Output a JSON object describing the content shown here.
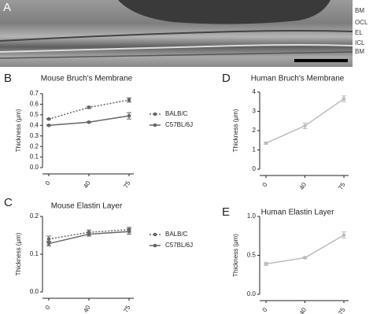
{
  "micrograph": {
    "panel_label": "A",
    "labels": [
      "BM",
      "OCL",
      "EL",
      "ICL",
      "BM"
    ]
  },
  "chart_data": [
    {
      "type": "line",
      "panel_label": "B",
      "title": "Mouse Bruch's Membrane",
      "y_label": "Thickness (μm)",
      "categories": [
        "0",
        "40",
        "75"
      ],
      "series": [
        {
          "name": "BALB/C",
          "color": "#666666",
          "dash": true,
          "values": [
            0.46,
            0.57,
            0.64
          ],
          "errors": [
            0.005,
            0.01,
            0.02
          ]
        },
        {
          "name": "C57BL/6J",
          "color": "#666666",
          "dash": false,
          "values": [
            0.4,
            0.43,
            0.49
          ],
          "errors": [
            0.005,
            0.005,
            0.03
          ]
        }
      ],
      "ylim": [
        0,
        0.7
      ],
      "yticks": [
        {
          "value": 0,
          "label": "0.0"
        },
        0.1,
        0.2,
        0.3,
        0.4,
        0.5,
        0.6,
        0.7
      ]
    },
    {
      "type": "line",
      "panel_label": "C",
      "title": "Mouse Elastin Layer",
      "y_label": "Thickness (μm)",
      "categories": [
        "0",
        "40",
        "75"
      ],
      "series": [
        {
          "name": "BALB/C",
          "color": "#666666",
          "dash": true,
          "values": [
            0.14,
            0.158,
            0.165
          ],
          "errors": [
            0.008,
            0.006,
            0.006
          ]
        },
        {
          "name": "C57BL/6J",
          "color": "#666666",
          "dash": false,
          "values": [
            0.128,
            0.153,
            0.16
          ],
          "errors": [
            0.006,
            0.005,
            0.007
          ]
        }
      ],
      "ylim": [
        0,
        0.2
      ],
      "yticks": [
        {
          "value": 0,
          "label": "0.0"
        },
        0.1,
        0.2
      ]
    },
    {
      "type": "line",
      "panel_label": "D",
      "title": "Human Bruch's Membrane",
      "y_label": "Thickness (μm)",
      "categories": [
        "0",
        "40",
        "75"
      ],
      "series": [
        {
          "color": "#bbbbbb",
          "dash": false,
          "values": [
            1.35,
            2.25,
            3.65
          ],
          "errors": [
            0.05,
            0.15,
            0.15
          ]
        }
      ],
      "ylim": [
        0,
        4
      ],
      "yticks": [
        0,
        1,
        2,
        3,
        4
      ]
    },
    {
      "type": "line",
      "panel_label": "E",
      "title": "Human Elastin Layer",
      "y_label": "Thickness (μm)",
      "categories": [
        "0",
        "40",
        "75"
      ],
      "series": [
        {
          "color": "#bbbbbb",
          "dash": false,
          "values": [
            0.39,
            0.47,
            0.76
          ],
          "errors": [
            0.02,
            0.01,
            0.04
          ]
        }
      ],
      "ylim": [
        0,
        1
      ],
      "yticks": [
        {
          "value": 0,
          "label": "0.0"
        },
        0.5,
        {
          "value": 1,
          "label": "1.0"
        }
      ]
    }
  ]
}
